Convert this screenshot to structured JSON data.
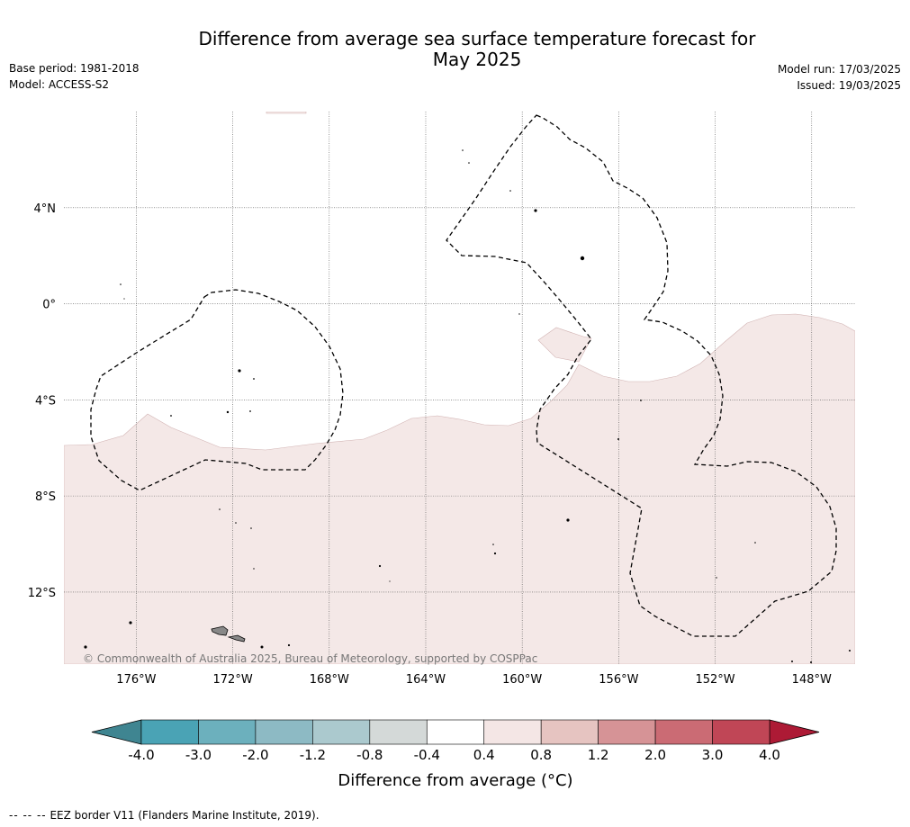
{
  "title_line1": "Difference from average sea surface temperature forecast for",
  "title_line2": "May 2025",
  "base_period": "Base period: 1981-2018",
  "model": "Model: ACCESS-S2",
  "model_run": "Model run: 17/03/2025",
  "issued": "Issued: 19/03/2025",
  "copyright": "© Commonwealth of Australia 2025, Bureau of Meteorology, supported by COSPPac",
  "footnote_symbol": "-- -- --",
  "footnote_text": "EEZ border V11 (Flanders Marine Institute, 2019).",
  "map": {
    "lon_range": [
      -179,
      -146.2
    ],
    "lat_range": [
      -15,
      8
    ],
    "lon_ticks": [
      {
        "value": -176,
        "label": "176°W"
      },
      {
        "value": -172,
        "label": "172°W"
      },
      {
        "value": -168,
        "label": "168°W"
      },
      {
        "value": -164,
        "label": "164°W"
      },
      {
        "value": -160,
        "label": "160°W"
      },
      {
        "value": -156,
        "label": "156°W"
      },
      {
        "value": -152,
        "label": "152°W"
      },
      {
        "value": -148,
        "label": "148°W"
      }
    ],
    "lat_ticks": [
      {
        "value": 4,
        "label": "4°N"
      },
      {
        "value": 0,
        "label": "0°"
      },
      {
        "value": -4,
        "label": "4°S"
      },
      {
        "value": -8,
        "label": "8°S"
      },
      {
        "value": -12,
        "label": "12°S"
      }
    ],
    "anomaly_region_color": "#f4e8e7",
    "anomaly_region_edge": "#d2b4b4",
    "eez_color": "#000000",
    "land_color": "#888888"
  },
  "colorbar": {
    "label": "Difference from average (°C)",
    "ticks": [
      "-4.0",
      "-3.0",
      "-2.0",
      "-1.2",
      "-0.8",
      "-0.4",
      "0.4",
      "0.8",
      "1.2",
      "2.0",
      "3.0",
      "4.0"
    ],
    "colors": [
      "#4aa3b5",
      "#6cb0bd",
      "#8dbac4",
      "#abc9ce",
      "#d4d9d8",
      "#ffffff",
      "#f4e6e5",
      "#e6c4c1",
      "#d69396",
      "#cb6b74",
      "#c04656"
    ],
    "under_color": "#3f8591",
    "over_color": "#ad1a35"
  }
}
